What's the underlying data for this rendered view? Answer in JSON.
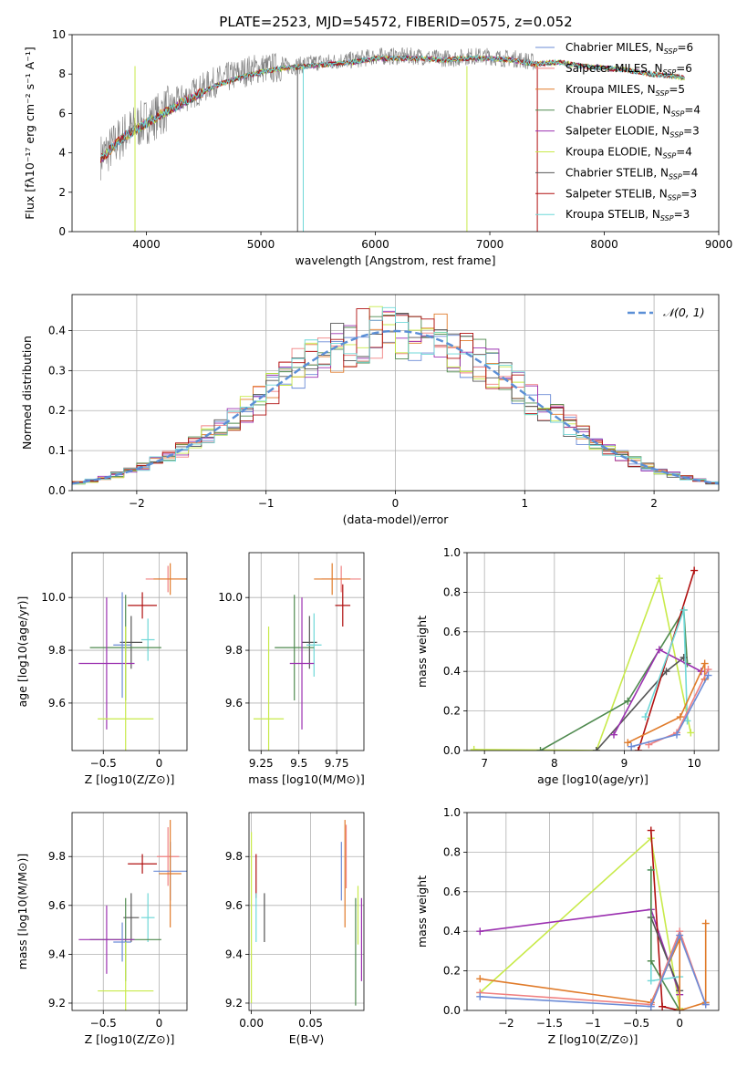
{
  "figure_title": "PLATE=2523, MJD=54572, FIBERID=0575, z=0.052",
  "colors": {
    "Chabrier MILES": "#6b8bd6",
    "Salpeter MILES": "#f08080",
    "Kroupa MILES": "#e07b2a",
    "Chabrier ELODIE": "#4f8a4f",
    "Salpeter ELODIE": "#9b30b0",
    "Kroupa ELODIE": "#c8ea4a",
    "Chabrier STELIB": "#555555",
    "Salpeter STELIB": "#b01010",
    "Kroupa STELIB": "#6fd8d8",
    "data": "#7f7f7f",
    "normal": "#5b8fd6",
    "grid": "#b0b0b0"
  },
  "chart_data": [
    {
      "type": "line",
      "id": "spectrum",
      "title": "",
      "xlabel": "wavelength [Angstrom, rest frame]",
      "ylabel": "Flux [fλ10⁻¹⁷ erg cm⁻² s⁻¹ A⁻¹]",
      "xlim": [
        3350,
        9000
      ],
      "ylim": [
        0,
        10
      ],
      "xticks": [
        4000,
        5000,
        6000,
        7000,
        8000,
        9000
      ],
      "yticks": [
        0,
        2,
        4,
        6,
        8,
        10
      ],
      "grid": false,
      "legend_position": "right",
      "data_series": {
        "name": "data",
        "x": [
          3600,
          3700,
          3800,
          3900,
          4000,
          4100,
          4200,
          4300,
          4400,
          4500,
          4600,
          4700,
          4800,
          4900,
          5000,
          5100,
          5200,
          5300,
          5400,
          5500,
          5600,
          5700,
          5800,
          5900,
          6000,
          6100,
          6200,
          6300,
          6400,
          6500,
          6600,
          6700,
          6800,
          6900,
          7000,
          7100,
          7200,
          7300,
          7400
        ],
        "y": [
          3.8,
          4.3,
          4.9,
          5.3,
          5.6,
          5.9,
          6.3,
          6.7,
          7.0,
          7.3,
          7.6,
          7.8,
          8.0,
          8.2,
          8.3,
          8.3,
          8.4,
          8.4,
          8.5,
          8.6,
          8.6,
          8.7,
          8.7,
          8.8,
          8.9,
          8.9,
          8.9,
          8.9,
          8.9,
          8.8,
          8.8,
          8.8,
          8.9,
          8.9,
          8.9,
          8.8,
          8.8,
          8.7,
          8.6
        ]
      },
      "models": {
        "x": [
          3600,
          3800,
          4000,
          4200,
          4400,
          4600,
          4800,
          5000,
          5200,
          5400,
          5600,
          5800,
          6000,
          6200,
          6400,
          6600,
          6800,
          7000,
          7200,
          7400,
          7600,
          7800,
          8000,
          8200,
          8400,
          8600,
          8700
        ],
        "y": [
          3.7,
          4.8,
          5.5,
          6.2,
          6.8,
          7.4,
          7.8,
          8.1,
          8.3,
          8.4,
          8.5,
          8.6,
          8.8,
          8.8,
          8.8,
          8.7,
          8.8,
          8.8,
          8.7,
          8.5,
          8.6,
          8.4,
          8.3,
          8.2,
          8.0,
          7.9,
          7.8
        ]
      },
      "legend": [
        "Chabrier MILES, N_SSP=6",
        "Salpeter MILES, N_SSP=6",
        "Kroupa MILES, N_SSP=5",
        "Chabrier ELODIE, N_SSP=4",
        "Salpeter ELODIE, N_SSP=3",
        "Kroupa ELODIE, N_SSP=4",
        "Chabrier STELIB, N_SSP=4",
        "Salpeter STELIB, N_SSP=3",
        "Kroupa STELIB, N_SSP=3"
      ]
    },
    {
      "type": "bar",
      "id": "residuals",
      "title": "",
      "xlabel": "(data-model)/error",
      "ylabel": "Normed distribution",
      "xlim": [
        -2.5,
        2.5
      ],
      "ylim": [
        0,
        0.49
      ],
      "xticks": [
        -2,
        -1,
        0,
        1,
        2
      ],
      "yticks": [
        0.0,
        0.1,
        0.2,
        0.3,
        0.4
      ],
      "grid": true,
      "legend": [
        "𝒩(0, 1)"
      ],
      "legend_position": "top-right",
      "bin_width": 0.1
    },
    {
      "type": "scatter",
      "id": "age_vs_Z",
      "xlabel": "Z [log10(Z/Z⊙)]",
      "ylabel": "age  [log10(age/yr)]",
      "xlim": [
        -0.78,
        0.25
      ],
      "ylim": [
        9.42,
        10.17
      ],
      "xticks": [
        -0.5,
        0.0
      ],
      "yticks": [
        9.6,
        9.8,
        10.0
      ],
      "grid": true,
      "points": [
        {
          "model": "Salpeter MILES",
          "x": 0.08,
          "y": 10.07,
          "xerr": 0.2,
          "yerr": 0.05
        },
        {
          "model": "Kroupa MILES",
          "x": 0.1,
          "y": 10.07,
          "xerr": 0.15,
          "yerr": 0.06
        },
        {
          "model": "Salpeter STELIB",
          "x": -0.15,
          "y": 9.97,
          "xerr": 0.13,
          "yerr": 0.05
        },
        {
          "model": "Kroupa STELIB",
          "x": -0.1,
          "y": 9.84,
          "xerr": 0.06,
          "yerr": 0.08
        },
        {
          "model": "Chabrier STELIB",
          "x": -0.25,
          "y": 9.83,
          "xerr": 0.1,
          "yerr": 0.1
        },
        {
          "model": "Chabrier ELODIE",
          "x": -0.3,
          "y": 9.81,
          "xerr": 0.32,
          "yerr": 0.2
        },
        {
          "model": "Salpeter ELODIE",
          "x": -0.47,
          "y": 9.75,
          "xerr": 0.25,
          "yerr": 0.25
        },
        {
          "model": "Chabrier MILES",
          "x": -0.33,
          "y": 9.82,
          "xerr": 0.08,
          "yerr": 0.2
        },
        {
          "model": "Kroupa ELODIE",
          "x": -0.3,
          "y": 9.54,
          "xerr": 0.25,
          "yerr": 0.35
        }
      ]
    },
    {
      "type": "scatter",
      "id": "age_vs_mass",
      "xlabel": "mass [log10(M/M⊙)]",
      "ylabel": "",
      "xlim": [
        9.17,
        9.93
      ],
      "ylim": [
        9.42,
        10.17
      ],
      "xticks": [
        9.25,
        9.5,
        9.75
      ],
      "yticks": [
        9.6,
        9.8,
        10.0
      ],
      "grid": true,
      "points": [
        {
          "model": "Salpeter MILES",
          "x": 9.78,
          "y": 10.07,
          "xerr": 0.13,
          "yerr": 0.05
        },
        {
          "model": "Kroupa MILES",
          "x": 9.72,
          "y": 10.07,
          "xerr": 0.12,
          "yerr": 0.06
        },
        {
          "model": "Salpeter STELIB",
          "x": 9.79,
          "y": 9.97,
          "xerr": 0.05,
          "yerr": 0.08
        },
        {
          "model": "Chabrier STELIB",
          "x": 9.57,
          "y": 9.83,
          "xerr": 0.05,
          "yerr": 0.1
        },
        {
          "model": "Kroupa STELIB",
          "x": 9.6,
          "y": 9.82,
          "xerr": 0.05,
          "yerr": 0.12
        },
        {
          "model": "Chabrier ELODIE",
          "x": 9.47,
          "y": 9.81,
          "xerr": 0.13,
          "yerr": 0.2
        },
        {
          "model": "Salpeter ELODIE",
          "x": 9.52,
          "y": 9.75,
          "xerr": 0.08,
          "yerr": 0.25
        },
        {
          "model": "Kroupa ELODIE",
          "x": 9.3,
          "y": 9.54,
          "xerr": 0.1,
          "yerr": 0.35
        }
      ]
    },
    {
      "type": "line",
      "id": "mass_weight_vs_age",
      "xlabel": "age  [log10(age/yr)]",
      "ylabel": "mass weight",
      "xlim": [
        6.75,
        10.35
      ],
      "ylim": [
        0,
        1.0
      ],
      "xticks": [
        7,
        8,
        9,
        10
      ],
      "yticks": [
        0.0,
        0.2,
        0.4,
        0.6,
        0.8,
        1.0
      ],
      "grid": true,
      "series": [
        {
          "model": "Kroupa ELODIE",
          "x": [
            6.85,
            8.6,
            9.5,
            9.95
          ],
          "y": [
            0.005,
            0.0,
            0.87,
            0.09
          ]
        },
        {
          "model": "Chabrier ELODIE",
          "x": [
            7.8,
            9.05,
            9.85,
            9.9
          ],
          "y": [
            0.0,
            0.25,
            0.71,
            0.44
          ]
        },
        {
          "model": "Chabrier STELIB",
          "x": [
            8.6,
            9.6,
            9.85
          ],
          "y": [
            0.0,
            0.4,
            0.47
          ]
        },
        {
          "model": "Salpeter STELIB",
          "x": [
            9.2,
            10.0
          ],
          "y": [
            0.0,
            0.91
          ]
        },
        {
          "model": "Salpeter ELODIE",
          "x": [
            8.85,
            9.5,
            10.1
          ],
          "y": [
            0.08,
            0.51,
            0.4
          ]
        },
        {
          "model": "Kroupa STELIB",
          "x": [
            9.3,
            9.85,
            9.9
          ],
          "y": [
            0.17,
            0.71,
            0.15
          ]
        },
        {
          "model": "Kroupa MILES",
          "x": [
            9.05,
            9.8,
            10.15,
            10.15
          ],
          "y": [
            0.04,
            0.17,
            0.44,
            0.36
          ]
        },
        {
          "model": "Salpeter MILES",
          "x": [
            9.35,
            9.75,
            10.2
          ],
          "y": [
            0.03,
            0.09,
            0.41
          ]
        },
        {
          "model": "Chabrier MILES",
          "x": [
            9.1,
            9.75,
            10.2
          ],
          "y": [
            0.02,
            0.08,
            0.38
          ]
        }
      ]
    },
    {
      "type": "scatter",
      "id": "mass_vs_Z",
      "xlabel": "Z [log10(Z/Z⊙)]",
      "ylabel": "mass [log10(M/M⊙)]",
      "xlim": [
        -0.78,
        0.25
      ],
      "ylim": [
        9.17,
        9.98
      ],
      "xticks": [
        -0.5,
        0.0
      ],
      "yticks": [
        9.2,
        9.4,
        9.6,
        9.8
      ],
      "grid": true,
      "points": [
        {
          "model": "Salpeter MILES",
          "x": 0.08,
          "y": 9.8,
          "xerr": 0.1,
          "yerr": 0.12
        },
        {
          "model": "Chabrier MILES",
          "x": 0.1,
          "y": 9.74,
          "xerr": 0.15,
          "yerr": 0.12
        },
        {
          "model": "Kroupa MILES",
          "x": 0.1,
          "y": 9.73,
          "xerr": 0.1,
          "yerr": 0.22
        },
        {
          "model": "Salpeter STELIB",
          "x": -0.15,
          "y": 9.77,
          "xerr": 0.13,
          "yerr": 0.04
        },
        {
          "model": "Kroupa STELIB",
          "x": -0.1,
          "y": 9.55,
          "xerr": 0.06,
          "yerr": 0.1
        },
        {
          "model": "Chabrier STELIB",
          "x": -0.25,
          "y": 9.55,
          "xerr": 0.07,
          "yerr": 0.1
        },
        {
          "model": "Chabrier ELODIE",
          "x": -0.3,
          "y": 9.46,
          "xerr": 0.32,
          "yerr": 0.17
        },
        {
          "model": "Salpeter ELODIE",
          "x": -0.47,
          "y": 9.46,
          "xerr": 0.25,
          "yerr": 0.14
        },
        {
          "model": "Chabrier MILES",
          "x": -0.33,
          "y": 9.45,
          "xerr": 0.08,
          "yerr": 0.08
        },
        {
          "model": "Kroupa ELODIE",
          "x": -0.3,
          "y": 9.25,
          "xerr": 0.25,
          "yerr": 0.2
        }
      ]
    },
    {
      "type": "scatter",
      "id": "mass_vs_EBV",
      "xlabel": "E(B-V)",
      "ylabel": "",
      "xlim": [
        -0.002,
        0.095
      ],
      "ylim": [
        9.17,
        9.98
      ],
      "xticks": [
        0.0,
        0.05
      ],
      "yticks": [
        9.2,
        9.4,
        9.6,
        9.8
      ],
      "grid": true,
      "points": [
        {
          "model": "Kroupa ELODIE",
          "x": 0.0,
          "y": 9.55,
          "yerr": 0.35
        },
        {
          "model": "Salpeter STELIB",
          "x": 0.004,
          "y": 9.72,
          "yerr": 0.09
        },
        {
          "model": "Kroupa STELIB",
          "x": 0.004,
          "y": 9.55,
          "yerr": 0.1
        },
        {
          "model": "Chabrier STELIB",
          "x": 0.011,
          "y": 9.55,
          "yerr": 0.1
        },
        {
          "model": "Chabrier MILES",
          "x": 0.076,
          "y": 9.74,
          "yerr": 0.12
        },
        {
          "model": "Salpeter MILES",
          "x": 0.08,
          "y": 9.8,
          "yerr": 0.13
        },
        {
          "model": "Kroupa MILES",
          "x": 0.079,
          "y": 9.73,
          "yerr": 0.22
        },
        {
          "model": "Chabrier ELODIE",
          "x": 0.088,
          "y": 9.41,
          "yerr": 0.22
        },
        {
          "model": "Kroupa ELODIE",
          "x": 0.09,
          "y": 9.56,
          "yerr": 0.12
        },
        {
          "model": "Salpeter ELODIE",
          "x": 0.093,
          "y": 9.46,
          "yerr": 0.17
        }
      ]
    },
    {
      "type": "line",
      "id": "mass_weight_vs_Z",
      "xlabel": "Z [log10(Z/Z⊙)]",
      "ylabel": "mass weight",
      "xlim": [
        -2.45,
        0.45
      ],
      "ylim": [
        0,
        1.0
      ],
      "xticks": [
        -2.0,
        -1.5,
        -1.0,
        -0.5,
        0.0
      ],
      "yticks": [
        0.0,
        0.2,
        0.4,
        0.6,
        0.8,
        1.0
      ],
      "grid": true,
      "series": [
        {
          "model": "Kroupa ELODIE",
          "x": [
            -2.3,
            -0.33,
            0.0
          ],
          "y": [
            0.09,
            0.87,
            0.01
          ]
        },
        {
          "model": "Salpeter ELODIE",
          "x": [
            -2.3,
            -0.33,
            0.0
          ],
          "y": [
            0.4,
            0.51,
            0.08
          ]
        },
        {
          "model": "Salpeter STELIB",
          "x": [
            -0.33,
            -0.2,
            0.0
          ],
          "y": [
            0.91,
            0.02,
            0.0
          ]
        },
        {
          "model": "Chabrier STELIB",
          "x": [
            -0.33,
            0.0
          ],
          "y": [
            0.47,
            0.1
          ]
        },
        {
          "model": "Kroupa STELIB",
          "x": [
            -0.33,
            -0.33,
            0.0
          ],
          "y": [
            0.71,
            0.15,
            0.17
          ]
        },
        {
          "model": "Chabrier ELODIE",
          "x": [
            -0.33,
            -0.33,
            0.0
          ],
          "y": [
            0.71,
            0.25,
            0.0
          ]
        },
        {
          "model": "Kroupa MILES",
          "x": [
            -2.3,
            -0.33,
            0.0,
            0.0,
            0.3,
            0.3
          ],
          "y": [
            0.16,
            0.04,
            0.36,
            0.0,
            0.04,
            0.44
          ]
        },
        {
          "model": "Salpeter MILES",
          "x": [
            -2.3,
            -0.33,
            0.0,
            0.3
          ],
          "y": [
            0.09,
            0.03,
            0.4,
            0.03
          ]
        },
        {
          "model": "Chabrier MILES",
          "x": [
            -2.3,
            -0.33,
            0.0,
            0.3
          ],
          "y": [
            0.07,
            0.02,
            0.38,
            0.03
          ]
        }
      ]
    }
  ]
}
